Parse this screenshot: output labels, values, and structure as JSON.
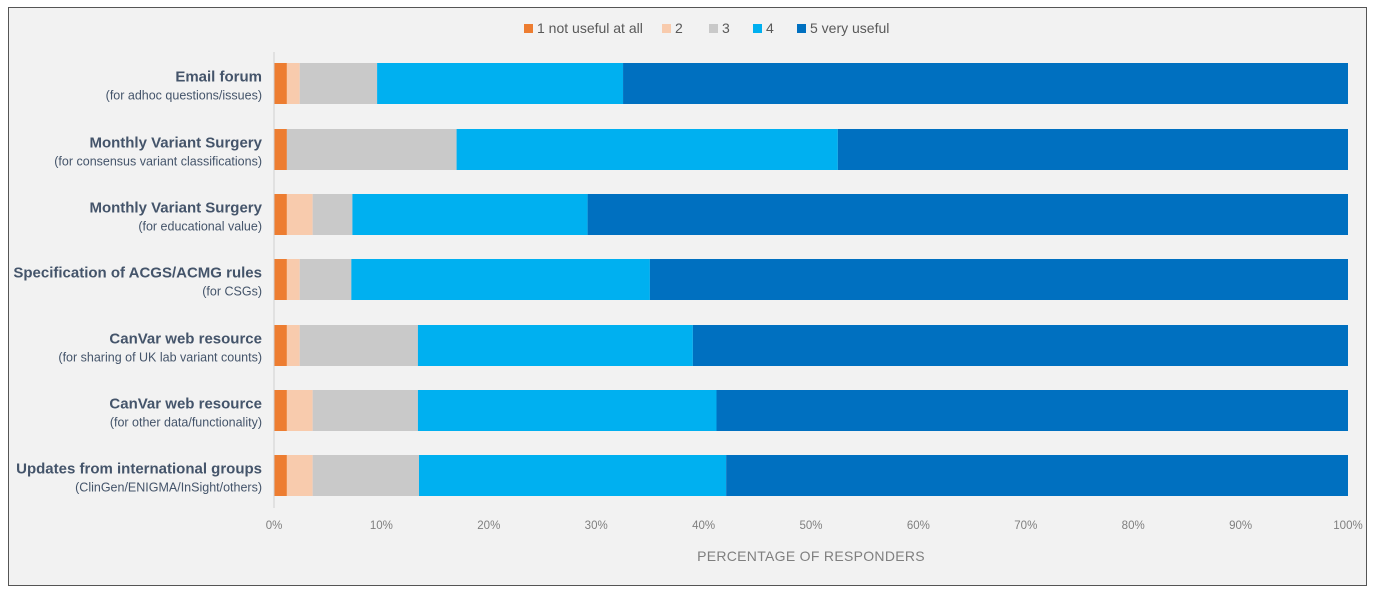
{
  "chart_data": {
    "type": "bar",
    "orientation": "horizontal",
    "stacked": true,
    "percent_stacked": true,
    "categories": [
      {
        "label": "Email forum",
        "sublabel": "(for adhoc questions/issues)"
      },
      {
        "label": "Monthly Variant Surgery",
        "sublabel": "(for consensus variant classifications)"
      },
      {
        "label": "Monthly Variant Surgery",
        "sublabel": "(for educational value)"
      },
      {
        "label": "Specification of ACGS/ACMG rules",
        "sublabel": "(for CSGs)"
      },
      {
        "label": "CanVar web resource",
        "sublabel": "(for sharing of UK lab variant counts)"
      },
      {
        "label": "CanVar web resource",
        "sublabel": "(for other data/functionality)"
      },
      {
        "label": "Updates from international groups",
        "sublabel": "(ClinGen/ENIGMA/InSight/others)"
      }
    ],
    "series": [
      {
        "name": "1 not useful at all",
        "color": "#ed7d31",
        "values": [
          1.2,
          1.2,
          1.2,
          1.2,
          1.2,
          1.2,
          1.2
        ]
      },
      {
        "name": "2",
        "color": "#f8cbad",
        "values": [
          1.2,
          0,
          2.4,
          1.2,
          1.2,
          2.4,
          2.4
        ]
      },
      {
        "name": "3",
        "color": "#c9c9c9",
        "values": [
          7.2,
          15.8,
          3.7,
          4.8,
          11.0,
          9.8,
          9.9
        ]
      },
      {
        "name": "4",
        "color": "#00b0f0",
        "values": [
          22.9,
          35.5,
          21.9,
          27.8,
          25.6,
          27.8,
          28.6
        ]
      },
      {
        "name": "5 very useful",
        "color": "#0070c0",
        "values": [
          67.5,
          47.5,
          70.8,
          65.0,
          61.0,
          58.8,
          57.9
        ]
      }
    ],
    "xlabel": "PERCENTAGE OF RESPONDERS",
    "xlim": [
      0,
      100
    ],
    "x_ticks": [
      "0%",
      "10%",
      "20%",
      "30%",
      "40%",
      "50%",
      "60%",
      "70%",
      "80%",
      "90%",
      "100%"
    ],
    "legend_position": "top",
    "grid": false
  }
}
